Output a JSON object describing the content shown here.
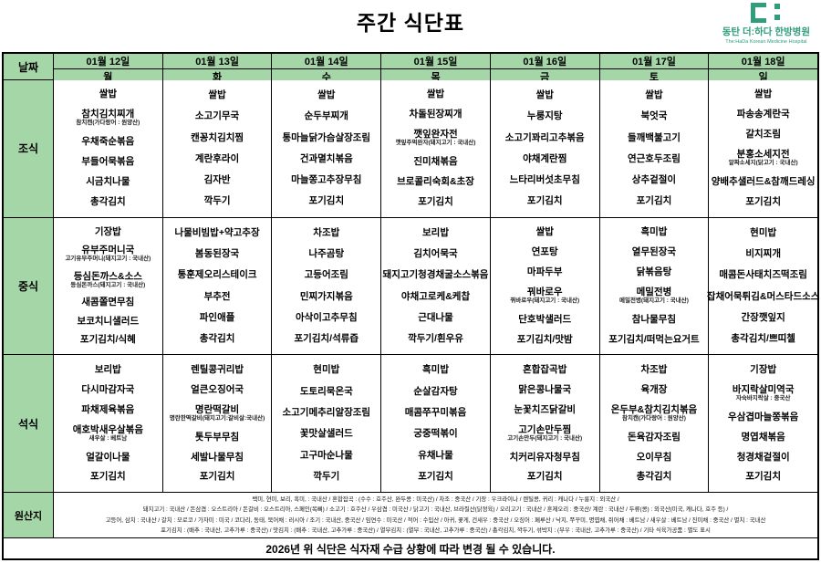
{
  "title": "주간 식단표",
  "logo": {
    "name": "동탄 더:하다 한방병원",
    "tagline": "The:HaDa Korean Medicine Hospital",
    "accent_color": "#2f9e7c"
  },
  "colors": {
    "header_green": "#a5d6a7",
    "border": "#000000"
  },
  "header": {
    "date_label": "날짜",
    "days": [
      {
        "date": "01월 12일",
        "day": "월"
      },
      {
        "date": "01월 13일",
        "day": "화"
      },
      {
        "date": "01월 14일",
        "day": "수"
      },
      {
        "date": "01월 15일",
        "day": "목"
      },
      {
        "date": "01월 16일",
        "day": "금"
      },
      {
        "date": "01월 17일",
        "day": "토"
      },
      {
        "date": "01월 18일",
        "day": "일"
      }
    ]
  },
  "meal_rows": [
    {
      "label": "조식",
      "cells": [
        [
          "쌀밥",
          {
            "name": "참치김치찌개",
            "note": "참치캔(가다랑어 : 원양산)"
          },
          "우채죽순볶음",
          "부들어묵볶음",
          "시금치나물",
          "총각김치"
        ],
        [
          "쌀밥",
          "소고기무국",
          "캔꽁치김치찜",
          "계란후라이",
          "김자반",
          "깍두기"
        ],
        [
          "쌀밥",
          "순두부찌개",
          "통마늘닭가슴살장조림",
          "건과멸치볶음",
          "마늘쫑고추장무침",
          "포기김치"
        ],
        [
          "쌀밥",
          "차돌된장찌개",
          {
            "name": "깻잎완자전",
            "note": "깻잎주먹완자(돼지고기 : 국내산)"
          },
          "진미채볶음",
          "브로콜리숙회&초장",
          "포기김치"
        ],
        [
          "쌀밥",
          "누룽지탕",
          "소고기꽈리고추볶음",
          "야채계란찜",
          "느타리버섯초무침",
          "포기김치"
        ],
        [
          "쌀밥",
          "북엇국",
          "들깨백불고기",
          "연근호두조림",
          "상추겉절이",
          "포기김치"
        ],
        [
          "쌀밥",
          "파송송계란국",
          "갈치조림",
          {
            "name": "분홍소세지전",
            "note": "알짜소세지(닭고기 : 국내산)"
          },
          "양배추샐러드&참깨드레싱",
          "포기김치"
        ]
      ]
    },
    {
      "label": "중식",
      "cells": [
        [
          "기장밥",
          {
            "name": "유부주머니국",
            "note": "고기유부주머니(돼지고기 : 국내산)"
          },
          {
            "name": "등심돈까스&소스",
            "note": "등심돈까스(돼지고기 : 국내산)"
          },
          "새콤쫄면무침",
          "보코치니샐러드",
          "포기김치/식혜"
        ],
        [
          "나물비빔밥+약고추장",
          "봄동된장국",
          "통훈제오리스테이크",
          "부추전",
          "파인애플",
          "총각김치"
        ],
        [
          "차조밥",
          "나주곰탕",
          "고등어조림",
          "민찌가지볶음",
          "아삭이고추무침",
          "포기김치/석류즙"
        ],
        [
          "보리밥",
          "김치어묵국",
          "돼지고기청경채굴소스볶음",
          "야채고로케&케찹",
          "근대나물",
          "깍두기/흰우유"
        ],
        [
          "쌀밥",
          "연포탕",
          "마파두부",
          {
            "name": "꿔바로우",
            "note": "꿔바로우(돼지고기 : 국내산)"
          },
          "단호박샐러드",
          "포기김치/맛밤"
        ],
        [
          "흑미밥",
          "열무된장국",
          "닭볶음탕",
          {
            "name": "메밀전병",
            "note": "메밀전병(돼지고기 : 국내산)"
          },
          "참나물무침",
          "포기김치/떠먹는요거트"
        ],
        [
          "현미밥",
          "비지찌개",
          "매콤돈사태치즈떡조림",
          "잡채어묵튀김&머스타드소스",
          "간장깻잎지",
          "총각김치/쁘띠첼"
        ]
      ]
    },
    {
      "label": "석식",
      "cells": [
        [
          "보리밥",
          "다시마감자국",
          "파채제육볶음",
          {
            "name": "애호박새우살볶음",
            "note": "새우살 : 베트남"
          },
          "얼갈이나물",
          "포기김치"
        ],
        [
          "렌틸콩귀리밥",
          "얼큰오징어국",
          {
            "name": "명란떡갈비",
            "note": "명란한떡갈비(돼지고기:갈비살:국내산)"
          },
          "톳두부무침",
          "세발나물무침",
          "포기김치"
        ],
        [
          "현미밥",
          "도토리묵온국",
          "소고기메추리알장조림",
          "꽃맛살샐러드",
          "고구마순나물",
          "깍두기"
        ],
        [
          "흑미밥",
          "순살감자탕",
          "매콤쭈꾸미볶음",
          "궁중떡볶이",
          "유채나물",
          "포기김치"
        ],
        [
          "혼합잡곡밥",
          "맑은콩나물국",
          "눈꽃치즈닭갈비",
          {
            "name": "고기손만두찜",
            "note": "고기손만두(돼지고기 : 국내산)"
          },
          "치커리유자청무침",
          "포기김치"
        ],
        [
          "차조밥",
          "육개장",
          {
            "name": "온두부&참치김치볶음",
            "note": "참치캔(가다랑어 : 원양산)"
          },
          "돈육감자조림",
          "오이무침",
          "총각김치"
        ],
        [
          "기장밥",
          {
            "name": "바지락살미역국",
            "note": "자숙바지락살 : 중국산"
          },
          "우삼겹마늘쫑볶음",
          "명엽채볶음",
          "청경채겉절이",
          "포기김치"
        ]
      ]
    }
  ],
  "origin": {
    "label": "원산지",
    "lines": [
      "백미, 현미, 보리, 흑미, : 국내산 / 혼합잡곡 : (수수 : 호주산, 완두콩 : 미국산) / 차조 : 중국산 / 기장 : 우크라이나 / 렌틸콩, 귀리 : 캐나다 / 누룽지 : 외국산 /",
      "돼지고기 : 국내산 / 돈삼겹 : 오스트리아 / 돈갈비 : 오스트리아, 스페인(목뼈) / 소고기 : 호주산 / 우삼겹 : 미국산 / 닭고기 : 국내산, 브라질산(닭정육) / 오리고기 : 국내산 / 훈제오리 : 중국산/ 계란 : 국내산 / 두류(콩) : 외국산(미국, 캐나다, 호주 등) /",
      "고등어, 삼치 : 국내산 / 갈치 : 모로코 / 가자미 : 미국 / 코다리, 동태, 북어채 : 러시아 / 조기 : 국내산, 중국산 / 임연수 : 미국산 / 적어 : 수입산 / 아귀, 꽃게, 건새우 : 중국산 / 오징어 : 페루산 / 낙지, 쭈꾸미, 명엽채, 쥐어채 : 베트남 / 새우살 : 베트남 / 진미채 : 중국산 / 멸치 : 국내산",
      "포기김치 : (배추 : 국내산, 고추가루 : 중국산) / 맛김치 : (배추 : 국내산, 고추가루 : 중국산) / 열무김치 : (열무 : 국내산, 고추가루 : 중국산) / 총각김치, 깍두기, 섞박지 : (무우 : 국내산, 고추가루 : 중국산) / 기타 식육가공품 : 별도 표시"
    ]
  },
  "notice": "2026년 위 식단은 식자재 수급 상황에 따라 변경 될 수 있습니다."
}
